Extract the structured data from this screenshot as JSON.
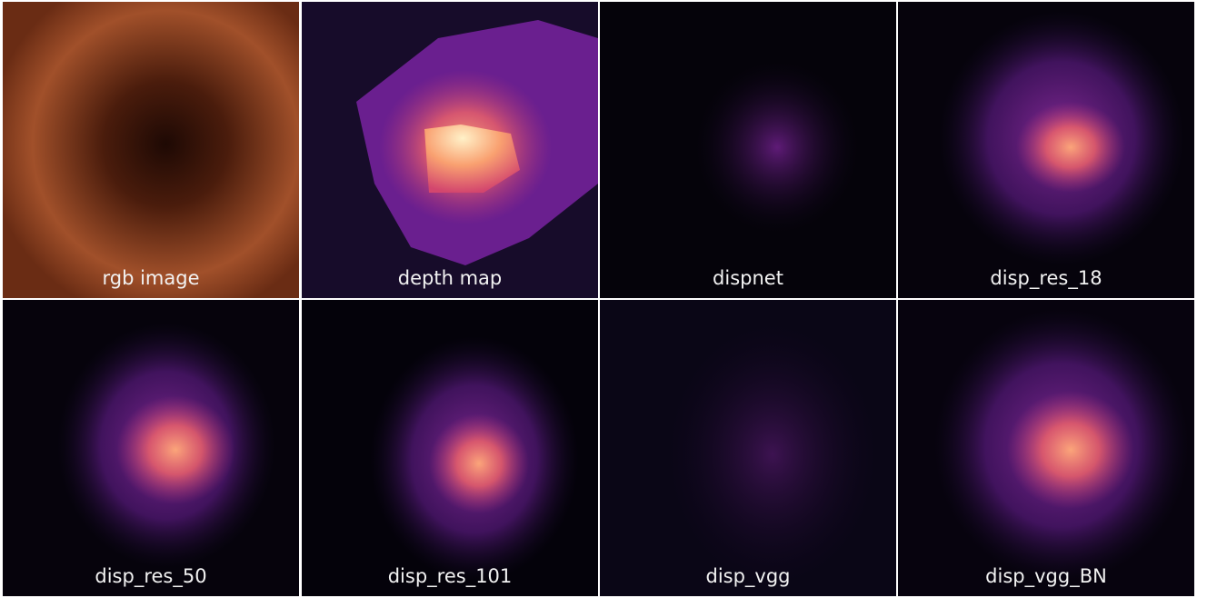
{
  "panels": [
    {
      "label": "rgb image"
    },
    {
      "label": "depth map"
    },
    {
      "label": "dispnet"
    },
    {
      "label": "disp_res_18"
    },
    {
      "label": "disp_res_50"
    },
    {
      "label": "disp_res_101"
    },
    {
      "label": "disp_vgg"
    },
    {
      "label": "disp_vgg_BN"
    }
  ]
}
